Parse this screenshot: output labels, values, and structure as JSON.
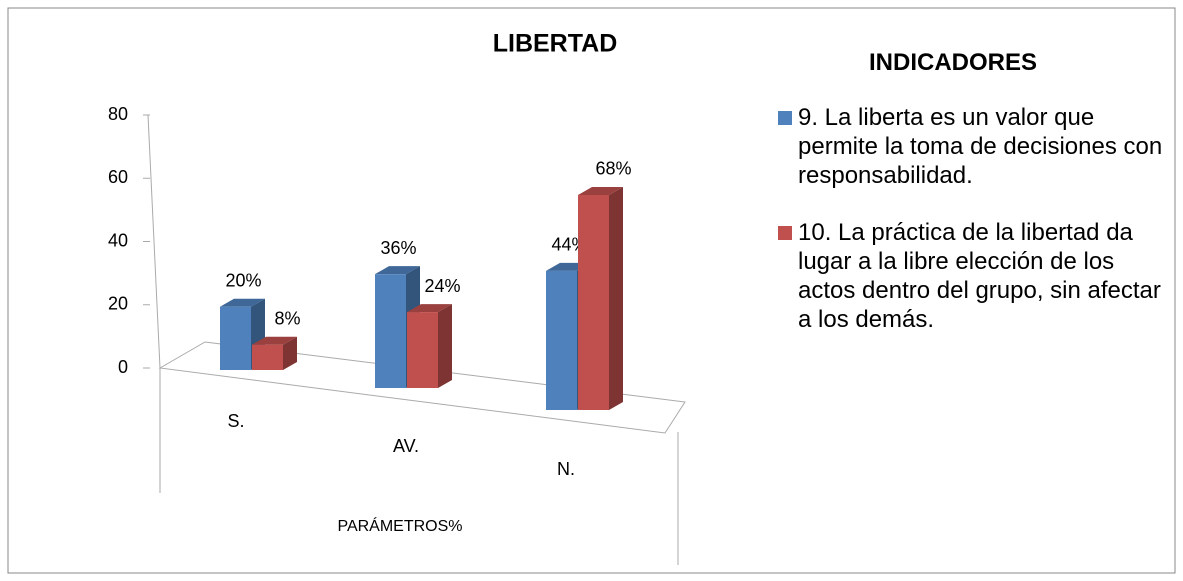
{
  "chart_data": {
    "type": "bar3d",
    "title": "LIBERTAD",
    "categories": [
      "S.",
      "AV.",
      "N."
    ],
    "x_label": "PARÁMETROS%",
    "legend_title": "INDICADORES",
    "series": [
      {
        "name": "9.   La liberta es un valor que permite la toma de decisiones con responsabilidad.",
        "color": "#4f81bd",
        "values": [
          20,
          36,
          44
        ],
        "value_labels": [
          "20%",
          "36%",
          "44%"
        ]
      },
      {
        "name": "10.   La práctica de la libertad da lugar a la libre elección de los actos dentro del grupo, sin afectar a los demás.",
        "color": "#c0504d",
        "values": [
          8,
          24,
          68
        ],
        "value_labels": [
          "8%",
          "24%",
          "68%"
        ]
      }
    ],
    "ylim": [
      0,
      80
    ],
    "yticks": [
      0,
      20,
      40,
      60,
      80
    ]
  }
}
